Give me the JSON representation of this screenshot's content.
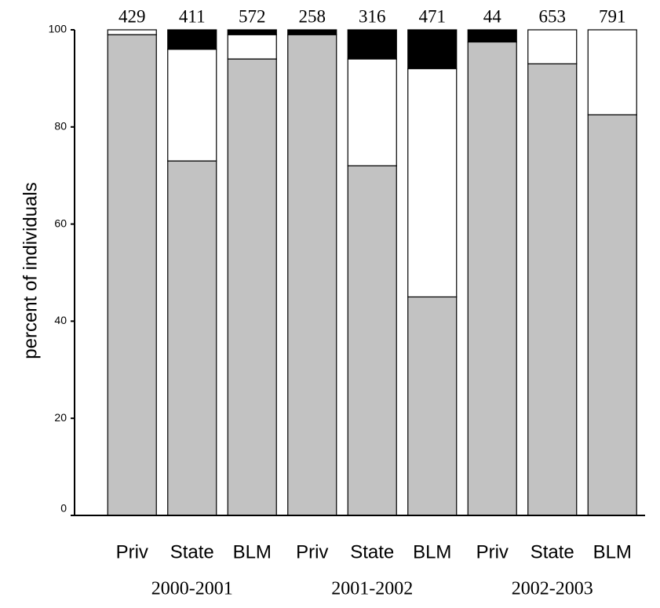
{
  "chart_data": {
    "type": "stacked_bar",
    "y_label": "percent of individuals",
    "categories": [
      "Priv",
      "State",
      "BLM",
      "Priv",
      "State",
      "BLM",
      "Priv",
      "State",
      "BLM"
    ],
    "groups": [
      {
        "label": "2000-2001",
        "span": [
          0,
          2
        ]
      },
      {
        "label": "2001-2002",
        "span": [
          3,
          5
        ]
      },
      {
        "label": "2002-2003",
        "span": [
          6,
          8
        ]
      }
    ],
    "sample_sizes": [
      429,
      411,
      572,
      258,
      316,
      471,
      44,
      653,
      791
    ],
    "series": [
      {
        "color": "#c2c2c2",
        "values": [
          99,
          73,
          94,
          99,
          72,
          45,
          97.5,
          93,
          82.5
        ]
      },
      {
        "color": "#ffffff",
        "values": [
          1,
          23,
          5,
          0,
          22,
          47,
          0,
          7,
          17.5
        ]
      },
      {
        "color": "#000000",
        "values": [
          0,
          4,
          1,
          1,
          6,
          8,
          2.5,
          0,
          0
        ]
      }
    ],
    "ylim": [
      0,
      100
    ],
    "yticks": [
      0,
      20,
      40,
      60,
      80,
      100
    ],
    "grid": false
  }
}
